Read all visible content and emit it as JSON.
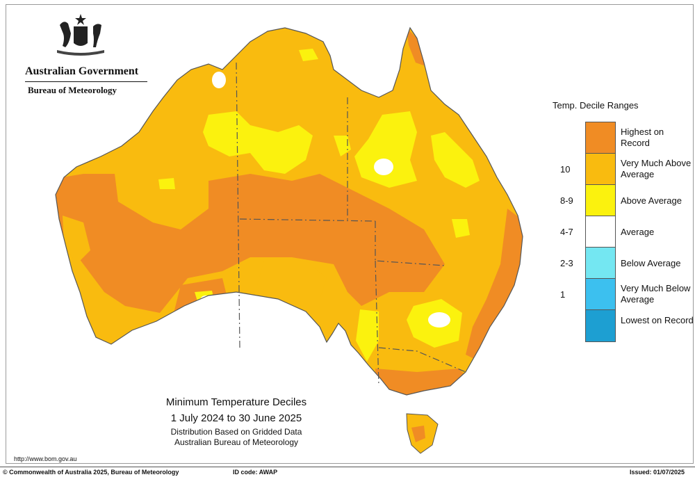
{
  "header": {
    "government": "Australian Government",
    "bureau": "Bureau of Meteorology"
  },
  "legend": {
    "title": "Temp. Decile Ranges",
    "items": [
      {
        "label": "Highest on Record",
        "range": "",
        "color": "#f08c24"
      },
      {
        "label": "Very Much Above Average",
        "range": "10",
        "color": "#f9bb0f"
      },
      {
        "label": "Above Average",
        "range": "8-9",
        "color": "#fbf20e"
      },
      {
        "label": "Average",
        "range": "4-7",
        "color": "#ffffff"
      },
      {
        "label": "Below Average",
        "range": "2-3",
        "color": "#74e7f2"
      },
      {
        "label": "Very Much Below Average",
        "range": "1",
        "color": "#3cc0ef"
      },
      {
        "label": "Lowest on Record",
        "range": "",
        "color": "#1d9fd2"
      }
    ]
  },
  "map_title": {
    "main": "Minimum Temperature Deciles",
    "dates": "1 July 2024 to 30 June 2025",
    "sub1": "Distribution Based on Gridded Data",
    "sub2": "Australian Bureau of Meteorology"
  },
  "url": "http://www.bom.gov.au",
  "footer": {
    "copyright": "© Commonwealth of Australia 2025, Bureau of Meteorology",
    "id_code": "ID code: AWAP",
    "issued": "Issued: 01/07/2025"
  },
  "colors": {
    "highest": "#f08c24",
    "very_much_above": "#f9bb0f",
    "above": "#fbf20e",
    "average": "#ffffff",
    "border": "#555555"
  }
}
